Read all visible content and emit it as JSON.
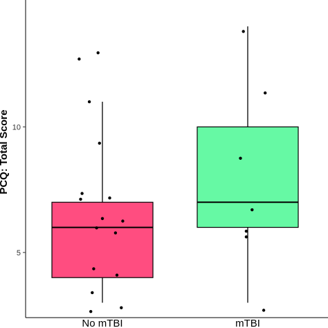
{
  "chart_data": {
    "type": "box",
    "ylabel": "PCQ: Total Score",
    "ylim": [
      2.6,
      14.5
    ],
    "yticks": [
      5,
      10
    ],
    "grid": false,
    "categories": [
      "No mTBI",
      "mTBI"
    ],
    "boxes": [
      {
        "category": "No mTBI",
        "color": "#ff4d80",
        "whisker_low": 3.0,
        "q1": 4.0,
        "median": 6.0,
        "q3": 7.0,
        "whisker_high": 11.0,
        "points": [
          {
            "x": -0.16,
            "y": 12.7
          },
          {
            "x": -0.03,
            "y": 12.95
          },
          {
            "x": -0.09,
            "y": 11.0
          },
          {
            "x": -0.02,
            "y": 9.35
          },
          {
            "x": -0.14,
            "y": 7.35
          },
          {
            "x": -0.15,
            "y": 7.12
          },
          {
            "x": 0.05,
            "y": 7.17
          },
          {
            "x": 0.0,
            "y": 6.35
          },
          {
            "x": 0.14,
            "y": 6.25
          },
          {
            "x": -0.04,
            "y": 5.98
          },
          {
            "x": 0.09,
            "y": 5.78
          },
          {
            "x": -0.06,
            "y": 4.35
          },
          {
            "x": 0.1,
            "y": 4.1
          },
          {
            "x": -0.07,
            "y": 3.4
          },
          {
            "x": 0.13,
            "y": 2.8
          },
          {
            "x": -0.08,
            "y": 2.65
          }
        ]
      },
      {
        "category": "mTBI",
        "color": "#66f9a4",
        "whisker_low": 3.0,
        "q1": 6.0,
        "median": 7.0,
        "q3": 10.0,
        "whisker_high": 14.0,
        "points": [
          {
            "x": -0.03,
            "y": 13.8
          },
          {
            "x": 0.12,
            "y": 11.35
          },
          {
            "x": -0.05,
            "y": 8.75
          },
          {
            "x": 0.03,
            "y": 6.7
          },
          {
            "x": -0.01,
            "y": 5.85
          },
          {
            "x": -0.01,
            "y": 5.62
          },
          {
            "x": 0.11,
            "y": 2.7
          }
        ]
      }
    ]
  }
}
